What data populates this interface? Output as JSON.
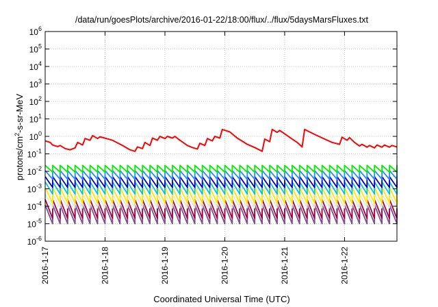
{
  "chart_data": {
    "type": "line",
    "title": "/data/run/goesPlots/archive/2016-01-22/18:00/flux/../flux/5daysMarsFluxes.txt",
    "xlabel": "Coordinated Universal Time (UTC)",
    "ylabel": {
      "pre": "protons/cm",
      "sup": "2",
      "post": "-s-sr-MeV"
    },
    "yscale": "log",
    "ylim": [
      1e-06,
      1000000.0
    ],
    "xlim": [
      "2016-01-17",
      "2016-01-22 21:00"
    ],
    "grid": true,
    "y_ticks": [
      {
        "value": 1e-06,
        "base": "10",
        "exp": "-6"
      },
      {
        "value": 1e-05,
        "base": "10",
        "exp": "-5"
      },
      {
        "value": 0.0001,
        "base": "10",
        "exp": "-4"
      },
      {
        "value": 0.001,
        "base": "10",
        "exp": "-3"
      },
      {
        "value": 0.01,
        "base": "10",
        "exp": "-2"
      },
      {
        "value": 0.1,
        "base": "10",
        "exp": "-1"
      },
      {
        "value": 1.0,
        "base": "10",
        "exp": "0"
      },
      {
        "value": 10.0,
        "base": "10",
        "exp": "1"
      },
      {
        "value": 100.0,
        "base": "10",
        "exp": "2"
      },
      {
        "value": 1000.0,
        "base": "10",
        "exp": "3"
      },
      {
        "value": 10000.0,
        "base": "10",
        "exp": "4"
      },
      {
        "value": 100000.0,
        "base": "10",
        "exp": "5"
      },
      {
        "value": 1000000.0,
        "base": "10",
        "exp": "6"
      }
    ],
    "x_ticks": [
      {
        "value": "2016-01-17",
        "label": "2016-1-17"
      },
      {
        "value": "2016-01-18",
        "label": "2016-1-18"
      },
      {
        "value": "2016-01-19",
        "label": "2016-1-19"
      },
      {
        "value": "2016-01-20",
        "label": "2016-1-20"
      },
      {
        "value": "2016-01-21",
        "label": "2016-1-21"
      },
      {
        "value": "2016-01-22",
        "label": "2016-1-22"
      }
    ],
    "series": [
      {
        "color": "#ff0000",
        "points": [
          [
            "2016-01-17 00:00",
            0.55
          ],
          [
            "2016-01-17 02:00",
            0.45
          ],
          [
            "2016-01-17 03:00",
            0.32
          ],
          [
            "2016-01-17 05:00",
            0.26
          ],
          [
            "2016-01-17 06:00",
            0.3
          ],
          [
            "2016-01-17 08:00",
            0.2
          ],
          [
            "2016-01-17 10:00",
            0.17
          ],
          [
            "2016-01-17 12:00",
            0.22
          ],
          [
            "2016-01-17 13:00",
            0.45
          ],
          [
            "2016-01-17 15:00",
            0.32
          ],
          [
            "2016-01-17 16:00",
            0.75
          ],
          [
            "2016-01-17 18:00",
            0.6
          ],
          [
            "2016-01-17 19:00",
            1.1
          ],
          [
            "2016-01-17 21:00",
            0.75
          ],
          [
            "2016-01-17 22:00",
            0.95
          ],
          [
            "2016-01-18 03:00",
            0.6
          ],
          [
            "2016-01-18 07:00",
            0.3
          ],
          [
            "2016-01-18 10:00",
            0.17
          ],
          [
            "2016-01-18 12:00",
            0.14
          ],
          [
            "2016-01-18 13:00",
            0.25
          ],
          [
            "2016-01-18 15:00",
            0.2
          ],
          [
            "2016-01-18 16:00",
            0.45
          ],
          [
            "2016-01-18 18:00",
            0.3
          ],
          [
            "2016-01-18 19:00",
            0.8
          ],
          [
            "2016-01-18 21:00",
            0.6
          ],
          [
            "2016-01-18 22:00",
            1.0
          ],
          [
            "2016-01-19 00:00",
            0.75
          ],
          [
            "2016-01-19 01:00",
            1.0
          ],
          [
            "2016-01-19 03:00",
            0.8
          ],
          [
            "2016-01-19 04:00",
            1.0
          ],
          [
            "2016-01-19 06:00",
            0.6
          ],
          [
            "2016-01-19 09:00",
            0.3
          ],
          [
            "2016-01-19 11:00",
            0.23
          ],
          [
            "2016-01-19 13:00",
            0.19
          ],
          [
            "2016-01-19 14:00",
            0.4
          ],
          [
            "2016-01-19 16:00",
            0.3
          ],
          [
            "2016-01-19 17:00",
            0.75
          ],
          [
            "2016-01-19 19:00",
            0.55
          ],
          [
            "2016-01-19 20:00",
            1.0
          ],
          [
            "2016-01-19 22:00",
            0.8
          ],
          [
            "2016-01-19 23:00",
            2.5
          ],
          [
            "2016-01-20 02:00",
            1.8
          ],
          [
            "2016-01-20 05:00",
            0.8
          ],
          [
            "2016-01-20 09:00",
            0.35
          ],
          [
            "2016-01-20 12:00",
            0.23
          ],
          [
            "2016-01-20 15:00",
            0.14
          ],
          [
            "2016-01-20 16:00",
            0.7
          ],
          [
            "2016-01-20 18:00",
            0.5
          ],
          [
            "2016-01-20 19:00",
            2.5
          ],
          [
            "2016-01-20 21:00",
            1.7
          ],
          [
            "2016-01-20 22:00",
            2.2
          ],
          [
            "2016-01-21 00:00",
            1.4
          ],
          [
            "2016-01-21 03:00",
            0.7
          ],
          [
            "2016-01-21 05:00",
            0.45
          ],
          [
            "2016-01-21 07:00",
            0.25
          ],
          [
            "2016-01-21 08:00",
            2.5
          ],
          [
            "2016-01-21 12:00",
            1.3
          ],
          [
            "2016-01-21 16:00",
            0.7
          ],
          [
            "2016-01-21 19:00",
            0.45
          ],
          [
            "2016-01-21 22:00",
            0.35
          ],
          [
            "2016-01-21 23:00",
            0.9
          ],
          [
            "2016-01-22 01:00",
            0.6
          ],
          [
            "2016-01-22 02:00",
            0.85
          ],
          [
            "2016-01-22 04:00",
            0.45
          ],
          [
            "2016-01-22 06:00",
            0.28
          ],
          [
            "2016-01-22 07:00",
            0.35
          ],
          [
            "2016-01-22 09:00",
            0.24
          ],
          [
            "2016-01-22 10:00",
            0.3
          ],
          [
            "2016-01-22 12:00",
            0.22
          ],
          [
            "2016-01-22 13:00",
            0.32
          ],
          [
            "2016-01-22 15:00",
            0.24
          ],
          [
            "2016-01-22 16:00",
            0.32
          ],
          [
            "2016-01-22 18:00",
            0.24
          ],
          [
            "2016-01-22 19:00",
            0.3
          ],
          [
            "2016-01-22 21:00",
            0.25
          ]
        ]
      },
      {
        "color": "#00ee00",
        "sawtooth": {
          "peak": 0.022,
          "trough": 0.009,
          "period_hours": 3
        }
      },
      {
        "color": "#1e8cff",
        "sawtooth": {
          "peak": 0.011,
          "trough": 0.0035,
          "period_hours": 3
        }
      },
      {
        "color": "#0000c8",
        "sawtooth": {
          "peak": 0.005,
          "trough": 0.0012,
          "period_hours": 3
        }
      },
      {
        "color": "#00c8c8",
        "sawtooth": {
          "peak": 0.0025,
          "trough": 0.0005,
          "period_hours": 3
        }
      },
      {
        "color": "#ffe600",
        "sawtooth": {
          "peak": 0.0012,
          "trough": 0.00015,
          "period_hours": 3
        }
      },
      {
        "color": "#e6e6d2",
        "sawtooth": {
          "peak": 0.0005,
          "trough": 8e-05,
          "period_hours": 3
        }
      },
      {
        "color": "#a0003c",
        "sawtooth": {
          "peak": 0.00025,
          "trough": 2e-05,
          "period_hours": 3
        }
      },
      {
        "color": "#7a5090",
        "sawtooth": {
          "peak": 0.00012,
          "trough": 1e-05,
          "period_hours": 3
        }
      }
    ]
  }
}
